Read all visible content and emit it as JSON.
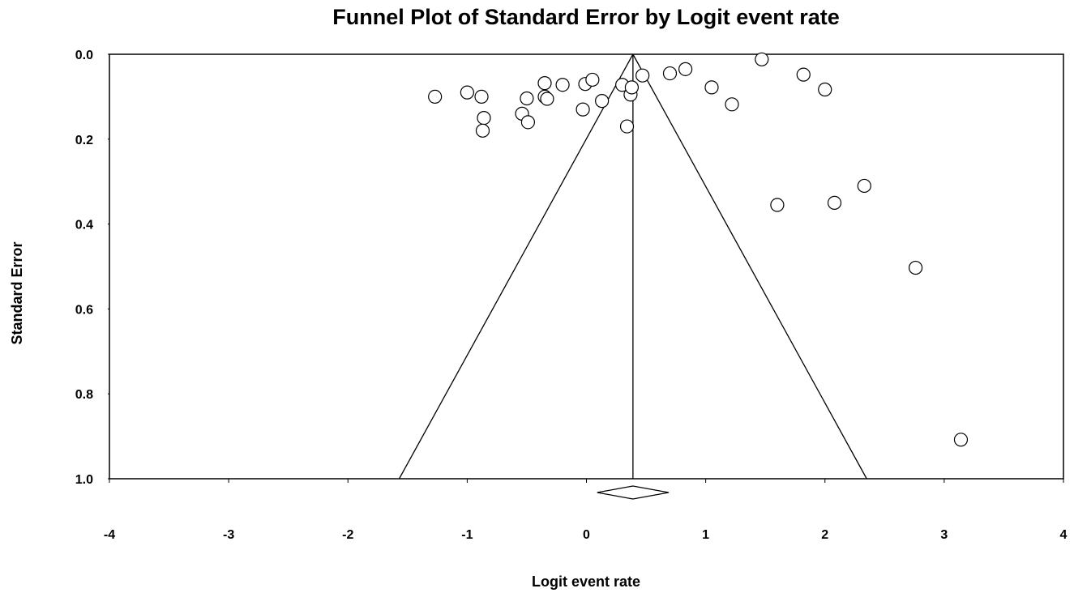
{
  "chart_data": {
    "type": "scatter",
    "title": "Funnel Plot of Standard Error by Logit event rate",
    "xlabel": "Logit event rate",
    "ylabel": "Standard Error",
    "xlim": [
      -4,
      4
    ],
    "ylim": [
      0.0,
      1.0
    ],
    "y_axis_inverted": true,
    "x_ticks": [
      "-4",
      "-3",
      "-2",
      "-1",
      "0",
      "1",
      "2",
      "3",
      "4"
    ],
    "y_ticks": [
      "0.0",
      "0.2",
      "0.4",
      "0.6",
      "0.8",
      "1.0"
    ],
    "grid": false,
    "pooled_estimate": 0.39,
    "funnel": {
      "apex": [
        0.39,
        0.0
      ],
      "left_base": [
        -1.57,
        1.0
      ],
      "right_base": [
        2.35,
        1.0
      ]
    },
    "summary_diamond": {
      "center": 0.39,
      "lower": 0.09,
      "upper": 0.69
    },
    "series": [
      {
        "marker": "open-circle",
        "points": [
          [
            -1.27,
            0.1
          ],
          [
            -1.0,
            0.09
          ],
          [
            -0.88,
            0.1
          ],
          [
            -0.86,
            0.15
          ],
          [
            -0.87,
            0.18
          ],
          [
            -0.54,
            0.14
          ],
          [
            -0.5,
            0.104
          ],
          [
            -0.49,
            0.16
          ],
          [
            -0.35,
            0.068
          ],
          [
            -0.35,
            0.1
          ],
          [
            -0.33,
            0.105
          ],
          [
            -0.2,
            0.072
          ],
          [
            -0.03,
            0.13
          ],
          [
            -0.01,
            0.07
          ],
          [
            0.05,
            0.06
          ],
          [
            0.13,
            0.11
          ],
          [
            0.3,
            0.072
          ],
          [
            0.34,
            0.17
          ],
          [
            0.37,
            0.095
          ],
          [
            0.38,
            0.078
          ],
          [
            0.47,
            0.05
          ],
          [
            0.7,
            0.045
          ],
          [
            0.83,
            0.035
          ],
          [
            1.05,
            0.078
          ],
          [
            1.22,
            0.118
          ],
          [
            1.47,
            0.012
          ],
          [
            1.6,
            0.355
          ],
          [
            1.82,
            0.048
          ],
          [
            2.0,
            0.083
          ],
          [
            2.08,
            0.35
          ],
          [
            2.33,
            0.31
          ],
          [
            2.76,
            0.503
          ],
          [
            3.14,
            0.908
          ]
        ]
      }
    ]
  }
}
